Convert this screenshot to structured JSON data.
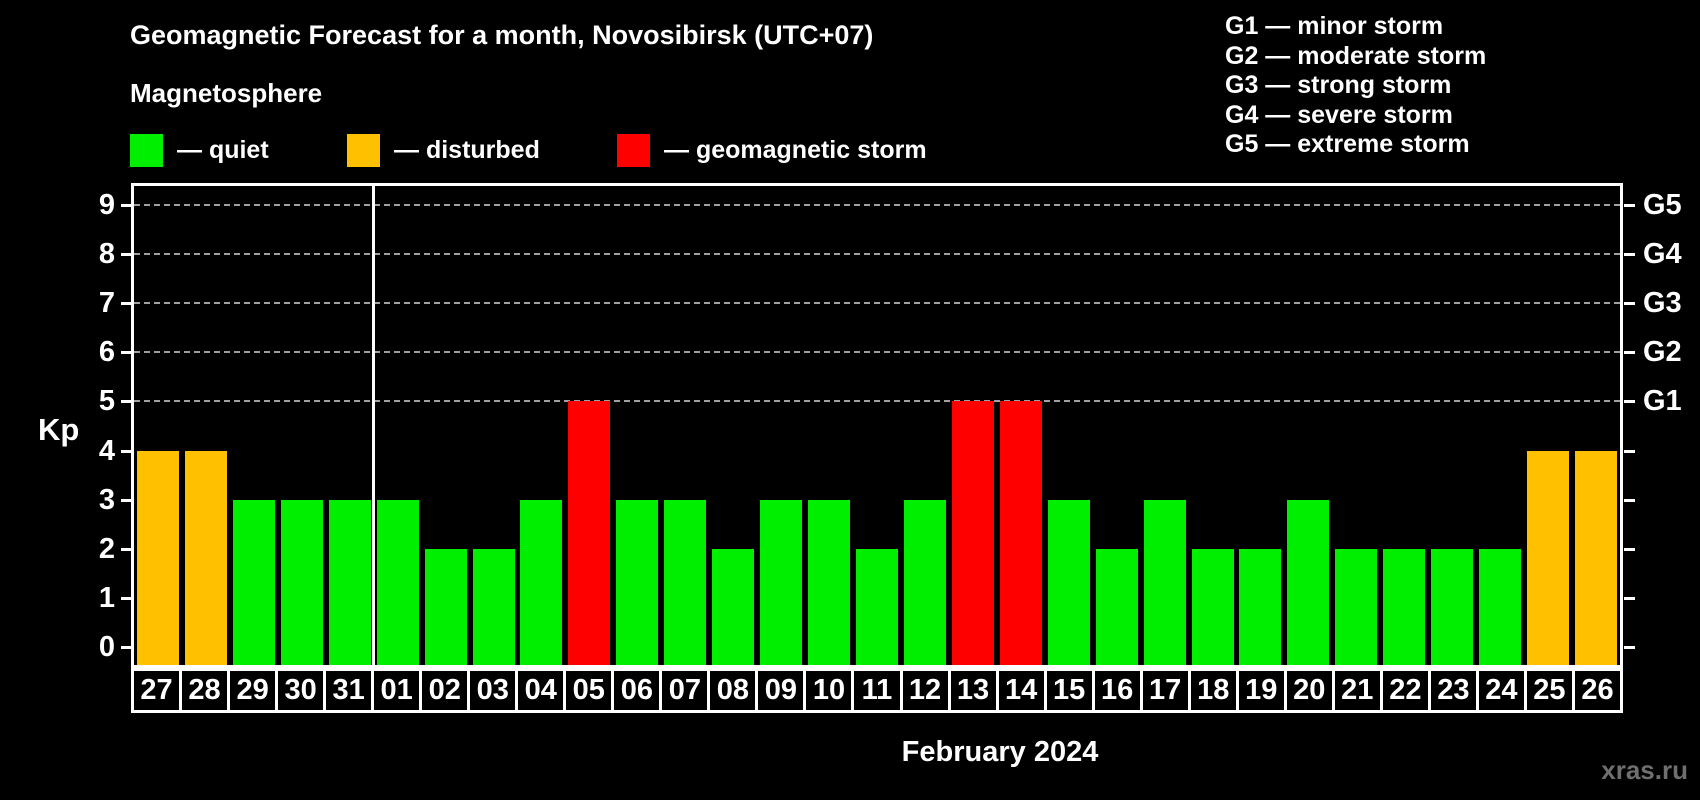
{
  "header": {
    "title": "Geomagnetic Forecast for a month, Novosibirsk (UTC+07)",
    "subtitle": "Magnetosphere"
  },
  "legend": {
    "items": [
      {
        "key": "quiet",
        "label": "— quiet"
      },
      {
        "key": "disturbed",
        "label": "— disturbed"
      },
      {
        "key": "storm",
        "label": "— geomagnetic storm"
      }
    ]
  },
  "storm_scale": [
    "G1 — minor storm",
    "G2 — moderate storm",
    "G3 — strong storm",
    "G4 — severe storm",
    "G5 — extreme storm"
  ],
  "colors": {
    "quiet": "#00EE00",
    "disturbed": "#FFC000",
    "storm": "#FF0000",
    "background": "#000000",
    "text": "#FFFFFF",
    "grid": "#A0A0A0",
    "frame": "#FFFFFF",
    "watermark": "#6F6F6F"
  },
  "chart_data": {
    "type": "bar",
    "title": "Geomagnetic Forecast for a month, Novosibirsk (UTC+07)",
    "categories": [
      "27",
      "28",
      "29",
      "30",
      "31",
      "01",
      "02",
      "03",
      "04",
      "05",
      "06",
      "07",
      "08",
      "09",
      "10",
      "11",
      "12",
      "13",
      "14",
      "15",
      "16",
      "17",
      "18",
      "19",
      "20",
      "21",
      "22",
      "23",
      "24",
      "25",
      "26"
    ],
    "values": [
      4,
      4,
      3,
      3,
      3,
      3,
      2,
      2,
      3,
      5,
      3,
      3,
      2,
      3,
      3,
      2,
      3,
      5,
      5,
      3,
      2,
      3,
      2,
      2,
      3,
      2,
      2,
      2,
      2,
      4,
      4
    ],
    "statuses": [
      "disturbed",
      "disturbed",
      "quiet",
      "quiet",
      "quiet",
      "quiet",
      "quiet",
      "quiet",
      "quiet",
      "storm",
      "quiet",
      "quiet",
      "quiet",
      "quiet",
      "quiet",
      "quiet",
      "quiet",
      "storm",
      "storm",
      "quiet",
      "quiet",
      "quiet",
      "quiet",
      "quiet",
      "quiet",
      "quiet",
      "quiet",
      "quiet",
      "quiet",
      "disturbed",
      "disturbed"
    ],
    "xlabel": "February 2024",
    "ylabel": "Kp",
    "ylim": [
      0,
      9
    ],
    "yticks": [
      0,
      1,
      2,
      3,
      4,
      5,
      6,
      7,
      8,
      9
    ],
    "grid_levels": [
      5,
      6,
      7,
      8,
      9
    ],
    "right_axis": [
      {
        "kp": 5,
        "label": "G1"
      },
      {
        "kp": 6,
        "label": "G2"
      },
      {
        "kp": 7,
        "label": "G3"
      },
      {
        "kp": 8,
        "label": "G4"
      },
      {
        "kp": 9,
        "label": "G5"
      }
    ],
    "month_boundary_after": "31",
    "legend_position": "top-left",
    "grid": "dashed horizontal at storm levels only"
  },
  "footer": {
    "watermark": "xras.ru"
  }
}
